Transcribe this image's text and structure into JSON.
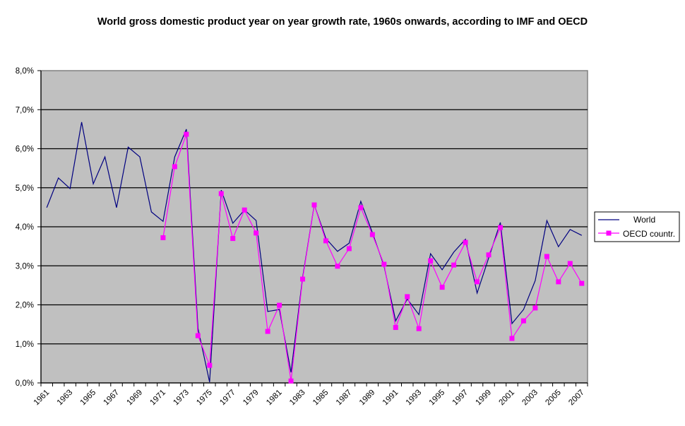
{
  "chart_data": {
    "type": "line",
    "title": "World gross domestic product year on year growth rate, 1960s onwards, according to IMF and OECD",
    "xlabel": "",
    "ylabel": "",
    "ylim": [
      0,
      8
    ],
    "y_ticks": [
      "0,0%",
      "1,0%",
      "2,0%",
      "3,0%",
      "4,0%",
      "5,0%",
      "6,0%",
      "7,0%",
      "8,0%"
    ],
    "grid": true,
    "legend_position": "right",
    "categories": [
      1961,
      1962,
      1963,
      1964,
      1965,
      1966,
      1967,
      1968,
      1969,
      1970,
      1971,
      1972,
      1973,
      1974,
      1975,
      1976,
      1977,
      1978,
      1979,
      1980,
      1981,
      1982,
      1983,
      1984,
      1985,
      1986,
      1987,
      1988,
      1989,
      1990,
      1991,
      1992,
      1993,
      1994,
      1995,
      1996,
      1997,
      1998,
      1999,
      2000,
      2001,
      2002,
      2003,
      2004,
      2005,
      2006,
      2007
    ],
    "x_tick_labels": [
      "1961",
      "1963",
      "1965",
      "1967",
      "1969",
      "1971",
      "1973",
      "1975",
      "1977",
      "1979",
      "1981",
      "1983",
      "1985",
      "1987",
      "1989",
      "1991",
      "1993",
      "1995",
      "1997",
      "1999",
      "2001",
      "2003",
      "2005",
      "2007"
    ],
    "series": [
      {
        "name": "World",
        "color": "#000080",
        "marker": "none",
        "values": [
          4.49,
          5.25,
          4.98,
          6.68,
          5.1,
          5.79,
          4.49,
          6.04,
          5.79,
          4.38,
          4.14,
          5.79,
          6.5,
          1.4,
          0.02,
          4.94,
          4.09,
          4.43,
          4.16,
          1.83,
          1.88,
          0.27,
          2.7,
          4.56,
          3.7,
          3.37,
          3.58,
          4.65,
          3.85,
          3.0,
          1.59,
          2.15,
          1.75,
          3.31,
          2.9,
          3.35,
          3.68,
          2.3,
          3.2,
          4.11,
          1.52,
          1.88,
          2.62,
          4.16,
          3.49,
          3.93,
          3.78
        ]
      },
      {
        "name": "OECD countr.",
        "color": "#FF00FF",
        "marker": "square",
        "values": [
          null,
          null,
          null,
          null,
          null,
          null,
          null,
          null,
          null,
          null,
          3.72,
          5.54,
          6.37,
          1.21,
          0.45,
          4.85,
          3.7,
          4.43,
          3.84,
          1.32,
          1.99,
          0.05,
          2.66,
          4.56,
          3.64,
          2.99,
          3.44,
          4.49,
          3.8,
          3.04,
          1.42,
          2.21,
          1.39,
          3.13,
          2.45,
          3.02,
          3.6,
          2.59,
          3.28,
          3.98,
          1.14,
          1.59,
          1.92,
          3.24,
          2.59,
          3.06,
          2.55
        ]
      }
    ]
  },
  "colors": {
    "plot_background": "#C0C0C0",
    "gridline": "#000000",
    "plot_border": "#808080"
  }
}
